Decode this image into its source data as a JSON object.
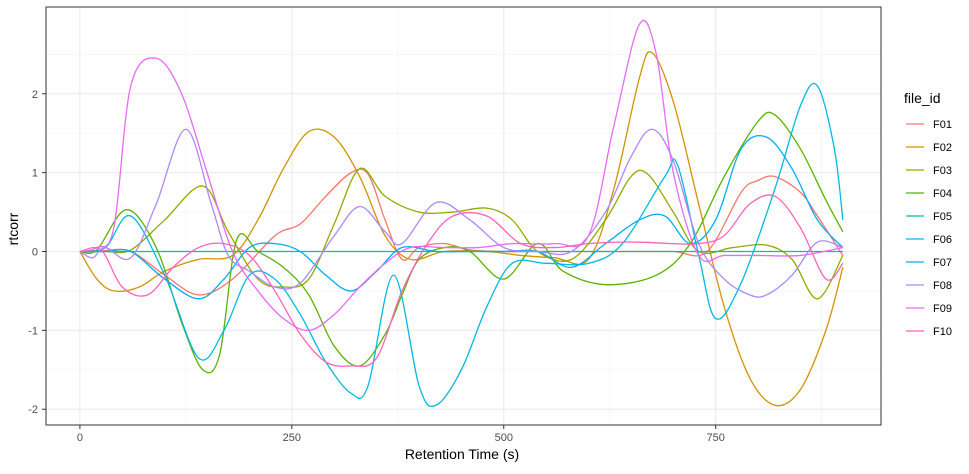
{
  "chart_data": {
    "type": "line",
    "title": "",
    "xlabel": "Retention Time (s)",
    "ylabel": "rtcorr",
    "xlim": [
      -40,
      945
    ],
    "ylim": [
      -2.2,
      3.1
    ],
    "x_ticks": [
      0,
      250,
      500,
      750
    ],
    "y_ticks": [
      -2,
      -1,
      0,
      1,
      2
    ],
    "grid": true,
    "legend": {
      "title": "file_id",
      "placement": "right"
    },
    "series": [
      {
        "name": "F01",
        "color": "#F8766D",
        "x": [
          0,
          25,
          60,
          100,
          140,
          180,
          230,
          260,
          290,
          320,
          340,
          360,
          380,
          400,
          430,
          460,
          500,
          540,
          580,
          620,
          660,
          700,
          740,
          780,
          800,
          820,
          850,
          870,
          900
        ],
        "y": [
          0,
          0.01,
          0.0,
          -0.3,
          -0.55,
          -0.35,
          0.2,
          0.35,
          0.7,
          1.0,
          0.98,
          0.4,
          -0.1,
          0.05,
          0.1,
          0.02,
          0.0,
          0.0,
          0.0,
          0.0,
          0.0,
          0.0,
          0.0,
          0.75,
          0.9,
          0.95,
          0.75,
          0.45,
          -0.05
        ]
      },
      {
        "name": "F02",
        "color": "#D39200",
        "x": [
          0,
          20,
          40,
          70,
          100,
          140,
          180,
          210,
          240,
          270,
          300,
          330,
          360,
          390,
          430,
          480,
          520,
          560,
          600,
          630,
          660,
          675,
          700,
          730,
          760,
          790,
          820,
          850,
          880,
          900
        ],
        "y": [
          0,
          -0.35,
          -0.5,
          -0.45,
          -0.25,
          -0.1,
          -0.05,
          0.4,
          1.05,
          1.52,
          1.45,
          0.95,
          0.2,
          -0.1,
          0.0,
          0.0,
          -0.05,
          -0.08,
          -0.1,
          0.8,
          2.2,
          2.52,
          1.9,
          0.6,
          -0.7,
          -1.6,
          -1.95,
          -1.75,
          -1.0,
          -0.2
        ]
      },
      {
        "name": "F03",
        "color": "#93AA00",
        "x": [
          0,
          30,
          60,
          100,
          145,
          175,
          210,
          240,
          270,
          300,
          330,
          360,
          400,
          440,
          480,
          510,
          540,
          580,
          620,
          650,
          670,
          700,
          730,
          770,
          810,
          840,
          870,
          900
        ],
        "y": [
          0,
          0.0,
          0.02,
          0.4,
          0.83,
          0.25,
          -0.35,
          -0.45,
          -0.35,
          0.35,
          1.05,
          0.7,
          0.5,
          0.5,
          0.55,
          0.4,
          0.0,
          -0.1,
          0.4,
          0.95,
          0.98,
          0.5,
          0.0,
          0.05,
          0.08,
          -0.1,
          -0.6,
          -0.05
        ]
      },
      {
        "name": "F04",
        "color": "#5BB300",
        "x": [
          0,
          20,
          55,
          90,
          120,
          145,
          165,
          185,
          210,
          240,
          270,
          300,
          330,
          360,
          380,
          400,
          430,
          460,
          500,
          540,
          570,
          620,
          680,
          720,
          760,
          800,
          820,
          850,
          880,
          900
        ],
        "y": [
          0,
          0.02,
          0.53,
          0.05,
          -0.9,
          -1.5,
          -1.3,
          0.15,
          0.0,
          -0.2,
          -0.55,
          -1.2,
          -1.45,
          -1.05,
          -0.55,
          -0.1,
          0.05,
          0.0,
          -0.35,
          0.1,
          -0.25,
          -0.42,
          -0.3,
          0.1,
          0.95,
          1.65,
          1.73,
          1.3,
          0.65,
          0.25
        ]
      },
      {
        "name": "F05",
        "color": "#00C19F",
        "x": [
          0,
          100,
          200,
          300,
          400,
          500,
          600,
          700,
          800,
          900
        ],
        "y": [
          0,
          0.0,
          0.0,
          0.0,
          0.0,
          0.0,
          0.0,
          0.0,
          0.0,
          0.0
        ]
      },
      {
        "name": "F06",
        "color": "#00B9E3",
        "x": [
          0,
          30,
          60,
          100,
          140,
          170,
          200,
          230,
          260,
          290,
          320,
          340,
          370,
          400,
          420,
          450,
          480,
          510,
          550,
          600,
          640,
          690,
          705,
          730,
          750,
          780,
          820,
          850,
          870,
          890,
          900
        ],
        "y": [
          0,
          0.05,
          0.45,
          -0.3,
          -1.35,
          -1.0,
          -0.3,
          -0.35,
          -0.8,
          -1.4,
          -1.8,
          -1.7,
          -0.3,
          -1.7,
          -1.95,
          -1.5,
          -0.7,
          -0.15,
          -0.15,
          -0.15,
          0.1,
          0.95,
          1.1,
          -0.05,
          -0.85,
          -0.4,
          0.8,
          1.85,
          2.1,
          1.3,
          0.4
        ]
      },
      {
        "name": "F07",
        "color": "#00ADFA",
        "x": [
          0,
          30,
          60,
          100,
          140,
          170,
          200,
          230,
          260,
          290,
          320,
          350,
          380,
          420,
          460,
          500,
          540,
          580,
          620,
          660,
          690,
          720,
          750,
          780,
          810,
          840,
          870,
          900
        ],
        "y": [
          0,
          0.0,
          0.0,
          -0.35,
          -0.6,
          -0.35,
          0.05,
          0.1,
          0.0,
          -0.3,
          -0.5,
          -0.25,
          0.05,
          0.0,
          0.0,
          0.0,
          0.0,
          -0.2,
          0.1,
          0.4,
          0.45,
          0.1,
          0.4,
          1.3,
          1.45,
          1.05,
          0.4,
          0.05
        ]
      },
      {
        "name": "F08",
        "color": "#AE87FF",
        "x": [
          0,
          15,
          30,
          60,
          90,
          125,
          155,
          175,
          200,
          230,
          260,
          300,
          330,
          360,
          380,
          420,
          460,
          500,
          540,
          580,
          620,
          650,
          675,
          700,
          730,
          760,
          790,
          810,
          840,
          870,
          900
        ],
        "y": [
          0,
          -0.08,
          0.05,
          -0.08,
          0.6,
          1.55,
          0.6,
          -0.05,
          -0.25,
          -0.45,
          -0.4,
          0.2,
          0.57,
          0.25,
          0.1,
          0.62,
          0.4,
          0.05,
          0.0,
          0.0,
          0.5,
          1.2,
          1.55,
          1.15,
          0.1,
          -0.35,
          -0.55,
          -0.55,
          -0.3,
          0.12,
          0.05
        ]
      },
      {
        "name": "F09",
        "color": "#E76BF3",
        "x": [
          0,
          20,
          40,
          60,
          90,
          120,
          150,
          180,
          210,
          240,
          270,
          300,
          330,
          360,
          390,
          430,
          470,
          510,
          560,
          600,
          630,
          660,
          680,
          700,
          730,
          760,
          800,
          850,
          900
        ],
        "y": [
          0,
          0.05,
          0.3,
          2.1,
          2.45,
          2.0,
          1.0,
          0.0,
          -0.5,
          -0.85,
          -1.0,
          -0.8,
          -0.45,
          -0.15,
          0.05,
          0.05,
          0.05,
          0.1,
          0.1,
          0.2,
          1.6,
          2.88,
          2.5,
          1.0,
          -0.05,
          -0.05,
          -0.05,
          -0.05,
          0.05
        ]
      },
      {
        "name": "F10",
        "color": "#FF62BC",
        "x": [
          0,
          25,
          50,
          80,
          110,
          140,
          170,
          200,
          230,
          260,
          290,
          320,
          350,
          380,
          410,
          440,
          480,
          520,
          560,
          600,
          650,
          700,
          730,
          760,
          790,
          820,
          850,
          880,
          900
        ],
        "y": [
          0,
          0.02,
          -0.45,
          -0.55,
          -0.2,
          0.05,
          0.1,
          -0.05,
          -0.5,
          -1.05,
          -1.4,
          -1.45,
          -1.35,
          -0.5,
          0.1,
          0.45,
          0.45,
          0.1,
          0.05,
          0.1,
          0.12,
          0.1,
          0.1,
          0.2,
          0.6,
          0.7,
          0.3,
          -0.35,
          -0.15
        ]
      }
    ]
  }
}
